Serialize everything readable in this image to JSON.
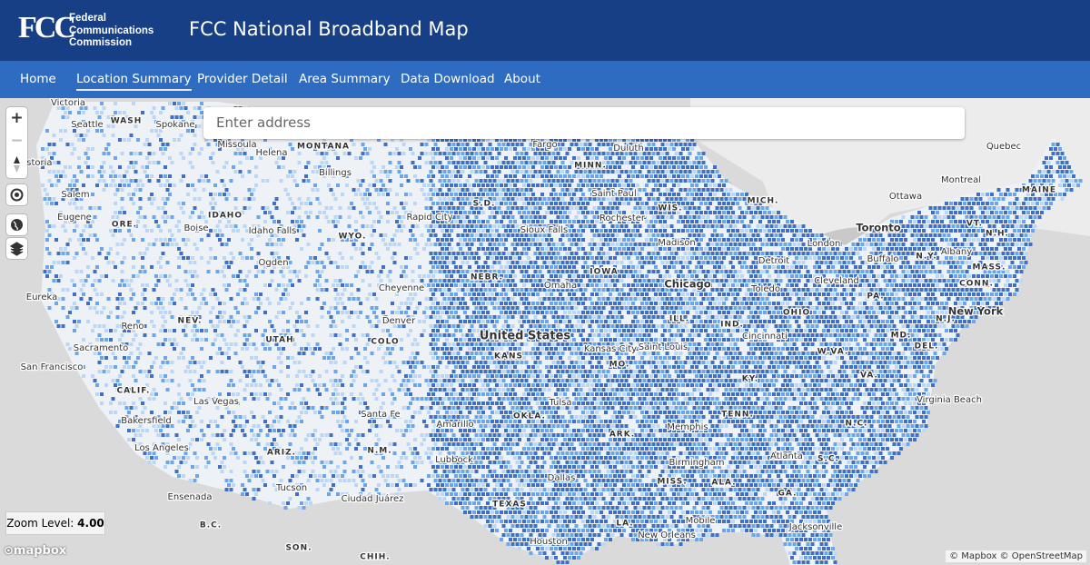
{
  "header": {
    "logo": "FCC",
    "agency": [
      "Federal",
      "Communications",
      "Commission"
    ],
    "title": "FCC National Broadband Map"
  },
  "nav": {
    "items": [
      "Home",
      "Location Summary",
      "Provider Detail",
      "Area Summary",
      "Data Download",
      "About"
    ],
    "active": 1
  },
  "search": {
    "placeholder": "Enter address"
  },
  "controls": [
    "+",
    "−"
  ],
  "zoom": {
    "label": "Zoom Level:",
    "value": "4.00"
  },
  "map_labels": [
    "Victoria",
    "Seattle",
    "WASH",
    "Spokane",
    "Missoula",
    "MONTANA",
    "Helena",
    "Billings",
    "Astoria",
    "Salem",
    "Eugene",
    "ORE.",
    "IDAHO",
    "Boise",
    "Idaho Falls",
    "WYO.",
    "Rapid City",
    "S.D.",
    "Fargo",
    "Duluth",
    "MINN.",
    "Saint Paul",
    "Rochester",
    "WIS.",
    "MICH.",
    "Sioux Falls",
    "Madison",
    "Ottawa",
    "Montreal",
    "Quebec",
    "MAINE",
    "Toronto",
    "London",
    "VT.",
    "N.H.",
    "Albany",
    "Buffalo",
    "N.Y.",
    "MASS.",
    "CONN.",
    "PA.",
    "New York",
    "N.J.",
    "Eureka",
    "NEV.",
    "Reno",
    "Ogden",
    "UTAH",
    "Cheyenne",
    "NEBR.",
    "IOWA",
    "Omaha",
    "Chicago",
    "Detroit",
    "Toledo",
    "Cleveland",
    "OHIO",
    "ILL.",
    "IND.",
    "Denver",
    "COLO",
    "United States",
    "KANS",
    "Kansas City",
    "Saint Louis",
    "MO.",
    "Cincinnati",
    "W.VA.",
    "MD.",
    "DEL.",
    "Sacramento",
    "San Francisco",
    "KY.",
    "VA.",
    "CALIF.",
    "Las Vegas",
    "Santa Fe",
    "Tulsa",
    "TENN.",
    "Virginia Beach",
    "Bakersfield",
    "Amarillo",
    "OKLA.",
    "ARK.",
    "Memphis",
    "N.C.",
    "Los Angeles",
    "ARIZ.",
    "N.M.",
    "Lubbock",
    "Birmingham",
    "Atlanta",
    "S.C.",
    "Dallas",
    "MISS.",
    "ALA.",
    "Tucson",
    "Ensenada",
    "Ciudad Juárez",
    "TEXAS",
    "GA.",
    "B.C.",
    "LA.",
    "Mobile",
    "Jacksonville",
    "SON.",
    "CHIH.",
    "Houston",
    "New Orleans"
  ],
  "footer": {
    "logo": "mapbox",
    "attribution": "© Mapbox © OpenStreetMap"
  }
}
